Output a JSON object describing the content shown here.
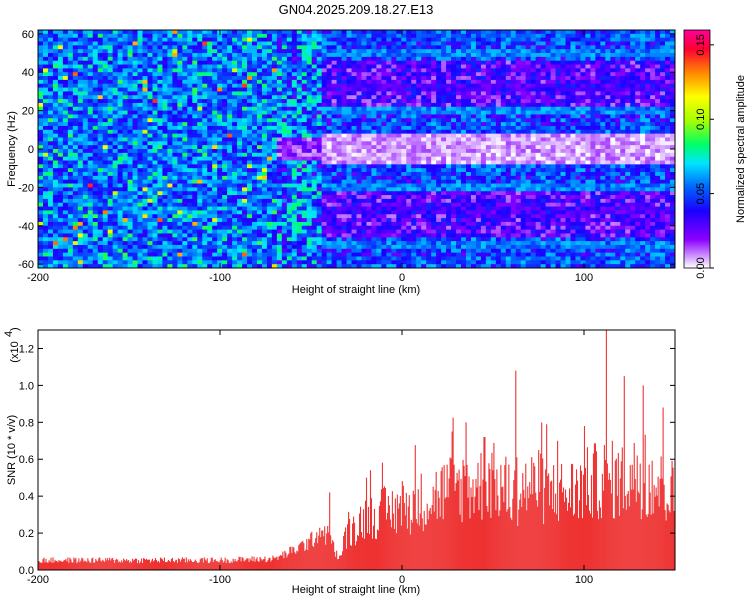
{
  "title": "GN04.2025.209.18.27.E13",
  "chart_data": [
    {
      "type": "heatmap",
      "xlabel": "Height of straight line (km)",
      "ylabel": "Frequency (Hz)",
      "xlim": [
        -200,
        150
      ],
      "ylim": [
        -62,
        62
      ],
      "xticks": [
        -200,
        -100,
        0,
        100
      ],
      "yticks": [
        -60,
        -40,
        -20,
        0,
        20,
        40,
        60
      ],
      "colorbar": {
        "label": "Normalized spectral amplitude",
        "range": [
          0.0,
          0.16
        ],
        "ticks": [
          "0.00",
          "0.05",
          "0.10",
          "0.15"
        ],
        "colors": [
          "#ffffff",
          "#8a00ff",
          "#1a00ff",
          "#0066ff",
          "#00e5ff",
          "#00ff66",
          "#a6ff00",
          "#ffff00",
          "#ff8800",
          "#ff0033",
          "#ff0099"
        ]
      },
      "bands": [
        {
          "freq": 62,
          "amplitude": 0.06
        },
        {
          "freq": 58,
          "amplitude": 0.07
        },
        {
          "freq": 50,
          "amplitude": 0.09
        },
        {
          "freq": 32,
          "amplitude": 0.04
        },
        {
          "freq": 20,
          "amplitude": 0.09
        },
        {
          "freq": 10,
          "amplitude": 0.06
        },
        {
          "freq": -10,
          "amplitude": 0.06
        },
        {
          "freq": -20,
          "amplitude": 0.09
        },
        {
          "freq": -32,
          "amplitude": 0.04
        },
        {
          "freq": -50,
          "amplitude": 0.09
        },
        {
          "freq": -58,
          "amplitude": 0.07
        },
        {
          "freq": -62,
          "amplitude": 0.06
        }
      ]
    },
    {
      "type": "area",
      "xlabel": "Height of straight line (km)",
      "ylabel": "SNR (10 * v/v)",
      "yscale_label": "(x10",
      "yscale_exp": "4",
      "xlim": [
        -200,
        150
      ],
      "ylim": [
        0,
        1.3
      ],
      "xticks": [
        -200,
        -100,
        0,
        100
      ],
      "yticks": [
        "0.0",
        "0.2",
        "0.4",
        "0.6",
        "0.8",
        "1.0",
        "1.2"
      ],
      "color": "#ee3333",
      "envelope": {
        "x": [
          -200,
          -150,
          -100,
          -70,
          -60,
          -50,
          -45,
          -40,
          -35,
          -30,
          -25,
          -20,
          -10,
          0,
          10,
          20,
          30,
          40,
          50,
          60,
          70,
          80,
          90,
          100,
          110,
          120,
          130,
          140,
          150
        ],
        "y": [
          0.06,
          0.06,
          0.06,
          0.07,
          0.12,
          0.18,
          0.25,
          0.2,
          0.06,
          0.25,
          0.3,
          0.35,
          0.38,
          0.4,
          0.45,
          0.5,
          0.55,
          0.55,
          0.58,
          0.5,
          0.55,
          0.52,
          0.5,
          0.55,
          0.6,
          0.58,
          0.62,
          0.55,
          0.5
        ]
      },
      "peaks": [
        {
          "x": -40,
          "y": 0.42
        },
        {
          "x": -20,
          "y": 0.5
        },
        {
          "x": 35,
          "y": 0.8
        },
        {
          "x": 45,
          "y": 0.72
        },
        {
          "x": 62,
          "y": 1.08
        },
        {
          "x": 75,
          "y": 0.65
        },
        {
          "x": 85,
          "y": 0.7
        },
        {
          "x": 100,
          "y": 0.78
        },
        {
          "x": 112,
          "y": 1.3
        },
        {
          "x": 122,
          "y": 1.05
        },
        {
          "x": 132,
          "y": 1.0
        },
        {
          "x": 143,
          "y": 0.88
        }
      ]
    }
  ]
}
